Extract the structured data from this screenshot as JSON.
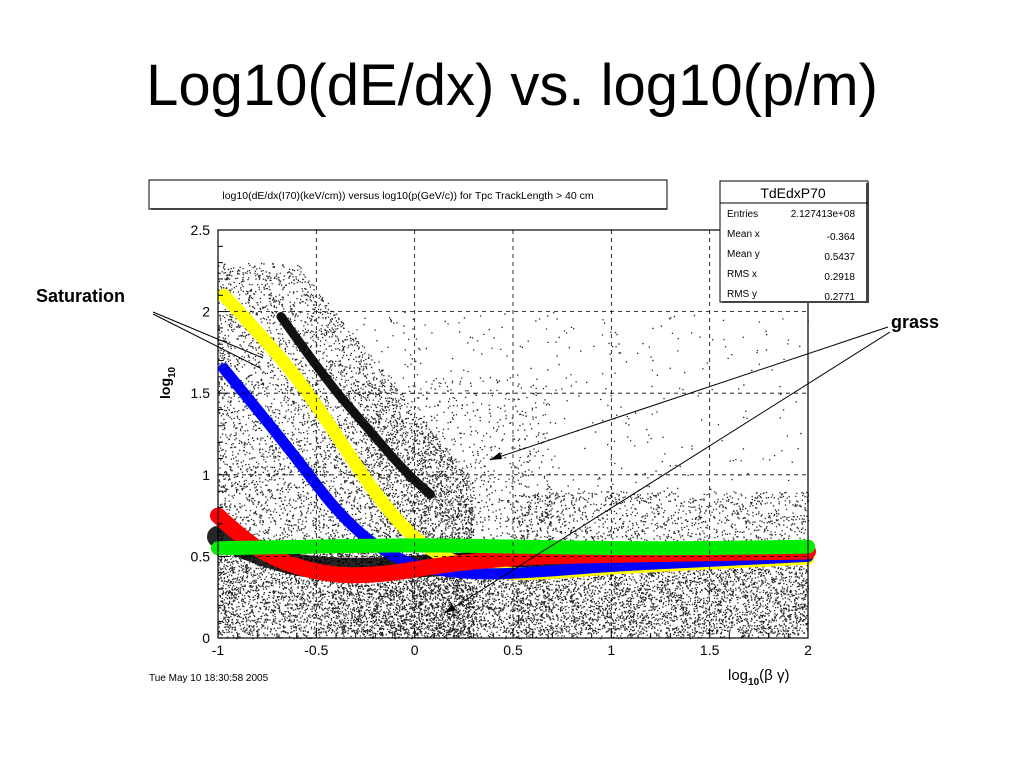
{
  "slide": {
    "title": "Log10(dE/dx) vs. log10(p/m)"
  },
  "timestamp": "Tue May 10 18:30:58 2005",
  "stats": {
    "name": "TdEdxP70",
    "rows": [
      {
        "label": "Entries",
        "value": "2.127413e+08"
      },
      {
        "label": "Mean x",
        "value": "-0.364"
      },
      {
        "label": "Mean y",
        "value": "0.5437"
      },
      {
        "label": "RMS x",
        "value": "0.2918"
      },
      {
        "label": "RMS y",
        "value": "0.2771"
      }
    ]
  },
  "annotations": {
    "saturation": "Saturation",
    "grass": "grass"
  },
  "chart_data": {
    "type": "scatter",
    "title": "log10(dE/dx(I70)(keV/cm)) versus log10(p(GeV/c)) for Tpc TrackLength > 40 cm",
    "xlabel": {
      "prefix": "log",
      "sub": "10",
      "suffix": "(β γ)"
    },
    "ylabel": {
      "prefix": "log",
      "sub": "10"
    },
    "xlim": [
      -1,
      2
    ],
    "ylim": [
      0,
      2.5
    ],
    "xticks": [
      "-1",
      "-0.5",
      "0",
      "0.5",
      "1",
      "1.5",
      "2"
    ],
    "yticks": [
      "0",
      "0.5",
      "1",
      "1.5",
      "2",
      "2.5"
    ],
    "grid": true,
    "bands": [
      {
        "color": "#111111",
        "points": [
          [
            -0.68,
            1.97
          ],
          [
            -0.45,
            1.58
          ],
          [
            -0.25,
            1.3
          ],
          [
            -0.05,
            1.02
          ],
          [
            0.08,
            0.88
          ]
        ]
      },
      {
        "color": "#000000",
        "points": [
          [
            -1.0,
            0.62
          ],
          [
            -0.7,
            0.46
          ],
          [
            -0.4,
            0.42
          ],
          [
            -0.1,
            0.43
          ],
          [
            0.3,
            0.46
          ],
          [
            0.8,
            0.49
          ]
        ]
      },
      {
        "color": "#ffff00",
        "points": [
          [
            -0.97,
            2.1
          ],
          [
            -0.8,
            1.88
          ],
          [
            -0.6,
            1.6
          ],
          [
            -0.4,
            1.25
          ],
          [
            -0.2,
            0.88
          ],
          [
            0.0,
            0.6
          ],
          [
            0.2,
            0.46
          ],
          [
            0.45,
            0.39
          ],
          [
            0.7,
            0.4
          ],
          [
            1.0,
            0.43
          ],
          [
            1.5,
            0.46
          ],
          [
            2.0,
            0.49
          ]
        ]
      },
      {
        "color": "#0000ff",
        "points": [
          [
            -0.97,
            1.65
          ],
          [
            -0.8,
            1.4
          ],
          [
            -0.6,
            1.1
          ],
          [
            -0.4,
            0.78
          ],
          [
            -0.2,
            0.56
          ],
          [
            0.0,
            0.44
          ],
          [
            0.2,
            0.4
          ],
          [
            0.4,
            0.39
          ],
          [
            0.7,
            0.41
          ],
          [
            1.0,
            0.44
          ],
          [
            1.5,
            0.47
          ],
          [
            2.0,
            0.5
          ]
        ]
      },
      {
        "color": "#ff0000",
        "points": [
          [
            -1.0,
            0.75
          ],
          [
            -0.85,
            0.58
          ],
          [
            -0.65,
            0.45
          ],
          [
            -0.4,
            0.38
          ],
          [
            -0.15,
            0.39
          ],
          [
            0.1,
            0.44
          ],
          [
            0.3,
            0.47
          ],
          [
            0.6,
            0.5
          ],
          [
            1.0,
            0.51
          ],
          [
            1.5,
            0.52
          ],
          [
            2.0,
            0.53
          ]
        ]
      },
      {
        "color": "#00ee00",
        "points": [
          [
            -1.0,
            0.55
          ],
          [
            -0.5,
            0.56
          ],
          [
            0.0,
            0.57
          ],
          [
            0.5,
            0.56
          ],
          [
            1.0,
            0.55
          ],
          [
            1.5,
            0.55
          ],
          [
            2.0,
            0.56
          ]
        ]
      }
    ]
  }
}
